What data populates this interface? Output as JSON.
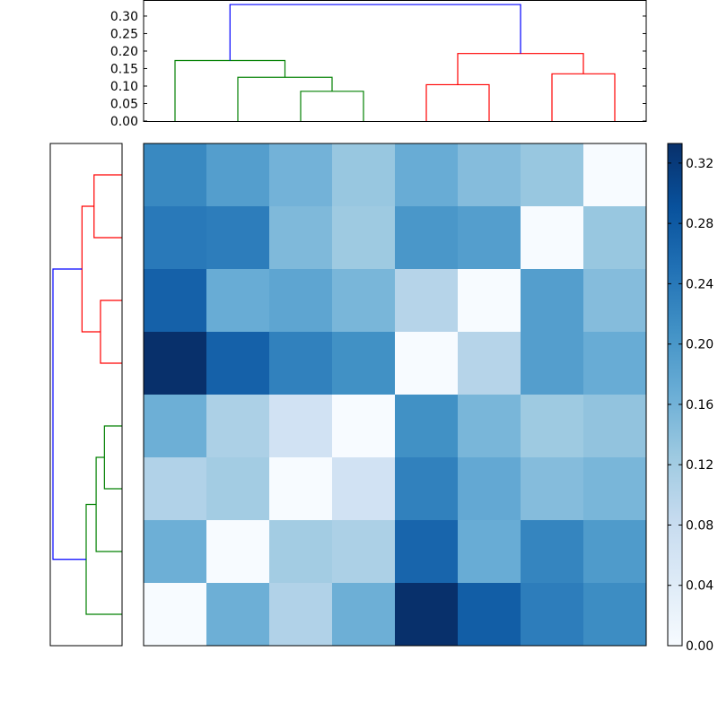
{
  "chart_data": [
    {
      "type": "heatmap",
      "colormap": "Blues",
      "clim": [
        0,
        0.333
      ],
      "rows": [
        [
          0.22,
          0.19,
          0.16,
          0.13,
          0.17,
          0.145,
          0.13,
          0.0
        ],
        [
          0.24,
          0.235,
          0.15,
          0.125,
          0.2,
          0.19,
          0.0,
          0.13
        ],
        [
          0.27,
          0.17,
          0.18,
          0.155,
          0.1,
          0.0,
          0.19,
          0.145
        ],
        [
          0.333,
          0.27,
          0.23,
          0.21,
          0.0,
          0.1,
          0.19,
          0.17
        ],
        [
          0.165,
          0.11,
          0.065,
          0.0,
          0.21,
          0.155,
          0.125,
          0.135
        ],
        [
          0.105,
          0.12,
          0.0,
          0.065,
          0.23,
          0.175,
          0.145,
          0.155
        ],
        [
          0.165,
          0.0,
          0.12,
          0.11,
          0.265,
          0.17,
          0.225,
          0.195
        ],
        [
          0.0,
          0.165,
          0.105,
          0.165,
          0.333,
          0.275,
          0.235,
          0.215
        ]
      ]
    },
    {
      "type": "dendrogram",
      "orientation": "top",
      "ylim": [
        0,
        0.346
      ],
      "yticks": [
        "0.00",
        "0.05",
        "0.10",
        "0.15",
        "0.20",
        "0.25",
        "0.30"
      ],
      "ytick_values": [
        0,
        0.05,
        0.1,
        0.15,
        0.2,
        0.25,
        0.3
      ],
      "links": [
        {
          "left": 2,
          "right": 3,
          "height": 0.085,
          "left_h": 0,
          "right_h": 0,
          "color": "#008000"
        },
        {
          "left": 1,
          "right": 2.5,
          "height": 0.125,
          "left_h": 0,
          "right_h": 0.085,
          "color": "#008000"
        },
        {
          "left": 0,
          "right": 1.75,
          "height": 0.173,
          "left_h": 0,
          "right_h": 0.125,
          "color": "#008000"
        },
        {
          "left": 4,
          "right": 5,
          "height": 0.104,
          "left_h": 0,
          "right_h": 0,
          "color": "#ff0000"
        },
        {
          "left": 6,
          "right": 7,
          "height": 0.135,
          "left_h": 0,
          "right_h": 0,
          "color": "#ff0000"
        },
        {
          "left": 4.5,
          "right": 6.5,
          "height": 0.193,
          "left_h": 0.104,
          "right_h": 0.135,
          "color": "#ff0000"
        },
        {
          "left": 0.875,
          "right": 5.5,
          "height": 0.333,
          "left_h": 0.173,
          "right_h": 0.193,
          "color": "#0000ff"
        }
      ]
    },
    {
      "type": "dendrogram",
      "orientation": "left",
      "xlim": [
        0,
        0.346
      ],
      "links": [
        {
          "left": 0,
          "right": 1,
          "height": 0.135,
          "left_h": 0,
          "right_h": 0,
          "color": "#ff0000"
        },
        {
          "left": 2,
          "right": 3,
          "height": 0.104,
          "left_h": 0,
          "right_h": 0,
          "color": "#ff0000"
        },
        {
          "left": 0.5,
          "right": 2.5,
          "height": 0.193,
          "left_h": 0.135,
          "right_h": 0.104,
          "color": "#ff0000"
        },
        {
          "left": 4,
          "right": 5,
          "height": 0.085,
          "left_h": 0,
          "right_h": 0,
          "color": "#008000"
        },
        {
          "left": 4.5,
          "right": 6,
          "height": 0.125,
          "left_h": 0.085,
          "right_h": 0,
          "color": "#008000"
        },
        {
          "left": 5.25,
          "right": 7,
          "height": 0.173,
          "left_h": 0.125,
          "right_h": 0,
          "color": "#008000"
        },
        {
          "left": 1.5,
          "right": 6.125,
          "height": 0.333,
          "left_h": 0.193,
          "right_h": 0.173,
          "color": "#0000ff"
        }
      ]
    },
    {
      "type": "colorbar",
      "range": [
        0,
        0.333
      ],
      "ticks": [
        "0.00",
        "0.04",
        "0.08",
        "0.12",
        "0.16",
        "0.20",
        "0.24",
        "0.28",
        "0.32"
      ],
      "tick_values": [
        0,
        0.04,
        0.08,
        0.12,
        0.16,
        0.2,
        0.24,
        0.28,
        0.32
      ]
    }
  ]
}
